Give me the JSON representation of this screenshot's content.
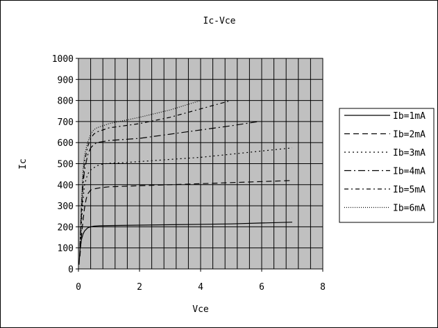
{
  "chart_data": {
    "type": "line",
    "title": "Ic-Vce",
    "xlabel": "Vce",
    "ylabel": "Ic",
    "xlim": [
      0,
      8
    ],
    "ylim": [
      0,
      1000
    ],
    "x_ticks": [
      0,
      2,
      4,
      6,
      8
    ],
    "y_ticks": [
      0,
      100,
      200,
      300,
      400,
      500,
      600,
      700,
      800,
      900,
      1000
    ],
    "x_grid_step": 0.4,
    "grid": true,
    "plot_background": "#c0c0c0",
    "legend": "right",
    "series": [
      {
        "name": "Ib=1mA",
        "dash": "solid",
        "x": [
          0.02,
          0.05,
          0.1,
          0.15,
          0.2,
          0.3,
          0.4,
          0.5,
          0.7,
          1.0,
          2.0,
          3.0,
          4.0,
          5.0,
          6.0,
          7.0
        ],
        "y": [
          20,
          90,
          140,
          165,
          180,
          195,
          200,
          203,
          205,
          206,
          208,
          210,
          212,
          214,
          218,
          222
        ]
      },
      {
        "name": "Ib=2mA",
        "dash": "8,5",
        "x": [
          0.05,
          0.1,
          0.15,
          0.2,
          0.25,
          0.3,
          0.4,
          0.5,
          0.7,
          1.0,
          2.0,
          3.0,
          4.0,
          5.0,
          6.0,
          7.0
        ],
        "y": [
          60,
          160,
          230,
          290,
          330,
          355,
          375,
          380,
          385,
          390,
          395,
          400,
          405,
          410,
          415,
          420
        ]
      },
      {
        "name": "Ib=3mA",
        "dash": "2,4",
        "x": [
          0.05,
          0.1,
          0.15,
          0.2,
          0.3,
          0.4,
          0.5,
          0.6,
          0.8,
          1.0,
          1.5,
          2.0,
          3.0,
          4.0,
          5.0,
          6.0,
          7.0
        ],
        "y": [
          80,
          220,
          330,
          400,
          450,
          470,
          480,
          490,
          498,
          502,
          505,
          510,
          520,
          530,
          545,
          560,
          575
        ]
      },
      {
        "name": "Ib=4mA",
        "dash": "10,4,2,4",
        "x": [
          0.05,
          0.1,
          0.15,
          0.2,
          0.3,
          0.4,
          0.5,
          0.6,
          0.8,
          1.0,
          2.0,
          3.0,
          4.0,
          5.0,
          5.9
        ],
        "y": [
          100,
          260,
          400,
          470,
          540,
          575,
          590,
          600,
          605,
          610,
          620,
          640,
          660,
          680,
          700
        ]
      },
      {
        "name": "Ib=5mA",
        "dash": "6,4,2,4",
        "x": [
          0.05,
          0.1,
          0.15,
          0.2,
          0.3,
          0.4,
          0.5,
          0.6,
          0.8,
          1.0,
          2.0,
          3.0,
          4.0,
          5.0
        ],
        "y": [
          110,
          290,
          430,
          510,
          580,
          620,
          640,
          650,
          660,
          670,
          690,
          720,
          760,
          800
        ]
      },
      {
        "name": "Ib=6mA",
        "dash": "1,2",
        "x": [
          0.05,
          0.1,
          0.15,
          0.2,
          0.3,
          0.4,
          0.5,
          0.6,
          0.8,
          1.0,
          1.5,
          2.0,
          3.0,
          4.0
        ],
        "y": [
          120,
          320,
          470,
          540,
          600,
          640,
          660,
          670,
          680,
          690,
          705,
          720,
          755,
          800
        ]
      }
    ]
  }
}
